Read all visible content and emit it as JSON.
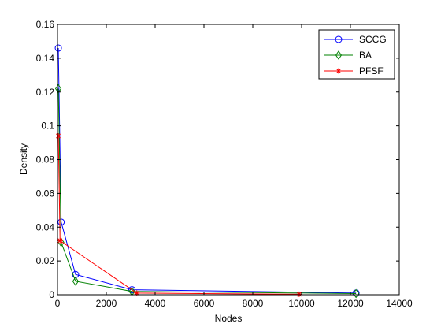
{
  "chart_data": {
    "type": "line",
    "title": "",
    "xlabel": "Nodes",
    "ylabel": "Density",
    "xlim": [
      0,
      14000
    ],
    "ylim": [
      0,
      0.16
    ],
    "xticks": [
      0,
      2000,
      4000,
      6000,
      8000,
      10000,
      12000,
      14000
    ],
    "xtick_labels": [
      "0",
      "2000",
      "4000",
      "6000",
      "8000",
      "10000",
      "12000",
      "14000"
    ],
    "yticks": [
      0,
      0.02,
      0.04,
      0.06,
      0.08,
      0.1,
      0.12,
      0.14,
      0.16
    ],
    "ytick_labels": [
      "0",
      "0.02",
      "0.04",
      "0.06",
      "0.08",
      "0.1",
      "0.12",
      "0.14",
      "0.16"
    ],
    "grid": false,
    "legend": "top-right",
    "series": [
      {
        "name": "SCCG",
        "color": "#0000ff",
        "marker": "circle",
        "x": [
          34,
          150,
          740,
          3050,
          12230
        ],
        "y": [
          0.146,
          0.043,
          0.012,
          0.003,
          0.001
        ]
      },
      {
        "name": "BA",
        "color": "#008000",
        "marker": "diamond",
        "x": [
          34,
          150,
          740,
          3050,
          12230
        ],
        "y": [
          0.122,
          0.031,
          0.008,
          0.002,
          0.0007
        ]
      },
      {
        "name": "PFSF",
        "color": "#ff0000",
        "marker": "star",
        "x": [
          34,
          105,
          3250,
          9900
        ],
        "y": [
          0.094,
          0.032,
          0.001,
          0.0003
        ]
      }
    ]
  }
}
